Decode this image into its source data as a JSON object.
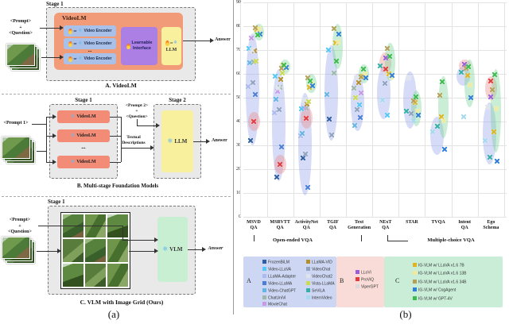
{
  "figure": {
    "caption_a": "(a)",
    "caption_b": "(b)"
  },
  "panel_a": {
    "stage1": "Stage 1",
    "title": "VideoLM",
    "encoder_label": "Video Encoder",
    "dots": "...",
    "or": "or",
    "interface_line1": "Learnable",
    "interface_line2": "Interface",
    "llm": "LLM",
    "prompt": [
      "<Prompt>",
      "+",
      "<Question>"
    ],
    "answer": "Answer",
    "caption": "A. VideoLM"
  },
  "panel_b": {
    "stage1": "Stage 1",
    "stage2": "Stage 2",
    "prompt1": "<Prompt 1>",
    "videolm": "VideoLM",
    "dots": "...",
    "textual": [
      "Textual",
      "Descriptions"
    ],
    "prompt2": [
      "<Prompt 2>",
      "+",
      "<Question>"
    ],
    "llm": "LLM",
    "answer": "Answer",
    "caption": "B. Multi-stage Foundation Models"
  },
  "panel_c": {
    "stage1": "Stage 1",
    "prompt": [
      "<Prompt>",
      "+",
      "<Question>"
    ],
    "vlm": "VLM",
    "answer": "Answer",
    "caption": "C. VLM with Image Grid (Ours)"
  },
  "chart_data": {
    "type": "scatter",
    "ylim": [
      0,
      90
    ],
    "yticks": [
      0,
      10,
      20,
      30,
      40,
      50,
      60,
      70,
      80,
      90
    ],
    "grid": true,
    "legend_position": "bottom",
    "categories": [
      [
        "MSVD",
        "QA"
      ],
      [
        "MSRVTT",
        "QA"
      ],
      [
        "ActivityNet",
        "QA"
      ],
      [
        "TGIF",
        "QA"
      ],
      [
        "Text",
        "Generation"
      ],
      [
        "NExT",
        "QA"
      ],
      [
        "STAR"
      ],
      [
        "TVQA"
      ],
      [
        "Intent",
        "QA"
      ],
      [
        "Ego",
        "Schema"
      ]
    ],
    "benchmark_groups": [
      {
        "label": "Open-ended VQA",
        "from": 0,
        "to": 3
      },
      {
        "label": "Multiple-choice VQA",
        "from": 5,
        "to": 9
      }
    ],
    "points": [
      [
        [
          "FrozenBiLM",
          32.2
        ],
        [
          "VideoChat",
          56.3
        ],
        [
          "LLaMA-Adapter",
          54.9
        ],
        [
          "Video-LLaMA",
          51.6
        ],
        [
          "Video-ChatGPT",
          64.9
        ],
        [
          "ChatUniVi",
          65.0
        ],
        [
          "MovieChat",
          75.2
        ],
        [
          "LLaMA-VID",
          69.7
        ],
        [
          "Video-LLaVA",
          70.7
        ],
        [
          "VideoChat2",
          70.0
        ],
        [
          "Vista-LLaMA",
          65.3
        ],
        [
          "ProViQ",
          40.0
        ],
        [
          "IG-VLM w/ LLaVA v1.6 7B",
          78.8
        ],
        [
          "IG-VLM w/ LLaVA v1.6 13B",
          79.2
        ],
        [
          "IG-VLM w/ LLaVA v1.6 34B",
          79.6
        ],
        [
          "IG-VLM w/ CogAgent",
          76.7
        ],
        [
          "IG-VLM w/ GPT-4V",
          76.3
        ]
      ],
      [
        [
          "FrozenBiLM",
          16.8
        ],
        [
          "VideoChat",
          45.0
        ],
        [
          "LLaMA-Adapter",
          43.8
        ],
        [
          "Video-LLaMA",
          29.6
        ],
        [
          "Video-ChatGPT",
          49.3
        ],
        [
          "ChatUniVi",
          54.6
        ],
        [
          "MovieChat",
          52.7
        ],
        [
          "LLaMA-VID",
          57.7
        ],
        [
          "Video-LLaVA",
          59.2
        ],
        [
          "VideoChat2",
          54.1
        ],
        [
          "Vista-LLaMA",
          60.5
        ],
        [
          "ProViQ",
          22.0
        ],
        [
          "IG-VLM w/ LLaVA v1.6 7B",
          63.7
        ],
        [
          "IG-VLM w/ LLaVA v1.6 13B",
          62.7
        ],
        [
          "IG-VLM w/ LLaVA v1.6 34B",
          62.4
        ],
        [
          "IG-VLM w/ CogAgent",
          62.7
        ],
        [
          "IG-VLM w/ GPT-4V",
          63.8
        ]
      ],
      [
        [
          "FrozenBiLM",
          24.7
        ],
        [
          "VideoChat",
          26.5
        ],
        [
          "LLaMA-Adapter",
          34.2
        ],
        [
          "Video-LLaMA",
          12.4
        ],
        [
          "Video-ChatGPT",
          35.2
        ],
        [
          "ChatUniVi",
          45.8
        ],
        [
          "MovieChat",
          45.7
        ],
        [
          "LLaMA-VID",
          47.4
        ],
        [
          "Video-LLaVA",
          45.3
        ],
        [
          "VideoChat2",
          49.1
        ],
        [
          "Vista-LLaMA",
          48.3
        ],
        [
          "ProViQ",
          41.5
        ],
        [
          "IG-VLM w/ LLaVA v1.6 7B",
          54.3
        ],
        [
          "IG-VLM w/ LLaVA v1.6 13B",
          56.1
        ],
        [
          "IG-VLM w/ LLaVA v1.6 34B",
          58.4
        ],
        [
          "IG-VLM w/ CogAgent",
          55.2
        ],
        [
          "IG-VLM w/ GPT-4V",
          57.0
        ]
      ],
      [
        [
          "FrozenBiLM",
          41.0
        ],
        [
          "VideoChat",
          34.4
        ],
        [
          "Video-ChatGPT",
          51.4
        ],
        [
          "ChatUniVi",
          60.3
        ],
        [
          "Video-LLaVA",
          70.0
        ],
        [
          "IG-VLM w/ LLaVA v1.6 7B",
          73.0
        ],
        [
          "IG-VLM w/ LLaVA v1.6 13B",
          73.5
        ],
        [
          "IG-VLM w/ LLaVA v1.6 34B",
          79.1
        ],
        [
          "IG-VLM w/ CogAgent",
          76.7
        ],
        [
          "IG-VLM w/ GPT-4V",
          65.3
        ]
      ],
      [
        [
          "VideoChat2",
          58.4
        ],
        [
          "LLaMA-VID",
          56.4
        ],
        [
          "ChatUniVi",
          54.0
        ],
        [
          "MovieChat",
          52.1
        ],
        [
          "Vista-LLaMA",
          50.1
        ],
        [
          "Video-LLaVA",
          47.1
        ],
        [
          "VideoChat",
          45.1
        ],
        [
          "Video-LLaMA",
          41.8
        ],
        [
          "Video-ChatGPT",
          38.4
        ],
        [
          "IG-VLM w/ LLaVA v1.6 7B",
          59.0
        ],
        [
          "IG-VLM w/ LLaVA v1.6 13B",
          60.0
        ],
        [
          "IG-VLM w/ LLaVA v1.6 34B",
          58.8
        ],
        [
          "IG-VLM w/ CogAgent",
          58.4
        ],
        [
          "IG-VLM w/ GPT-4V",
          62.2
        ]
      ],
      [
        [
          "InternVideo",
          49.1
        ],
        [
          "VideoChat",
          56.0
        ],
        [
          "ViperGPT",
          60.0
        ],
        [
          "SeViLA",
          63.6
        ],
        [
          "LLoVi",
          66.8
        ],
        [
          "ProViQ",
          62.1
        ],
        [
          "Video-LLaVA",
          42.8
        ],
        [
          "IG-VLM w/ LLaVA v1.6 7B",
          60.2
        ],
        [
          "IG-VLM w/ LLaVA v1.6 13B",
          58.8
        ],
        [
          "IG-VLM w/ LLaVA v1.6 34B",
          70.9
        ],
        [
          "IG-VLM w/ CogAgent",
          59.4
        ],
        [
          "IG-VLM w/ GPT-4V",
          67.4
        ]
      ],
      [
        [
          "VideoChat2",
          58.4
        ],
        [
          "VideoChat",
          43.4
        ],
        [
          "SeViLA",
          44.6
        ],
        [
          "InternVideo",
          40.4
        ],
        [
          "IG-VLM w/ LLaVA v1.6 7B",
          48.0
        ],
        [
          "IG-VLM w/ LLaVA v1.6 13B",
          44.4
        ],
        [
          "IG-VLM w/ LLaVA v1.6 34B",
          48.8
        ],
        [
          "IG-VLM w/ CogAgent",
          42.8
        ],
        [
          "IG-VLM w/ GPT-4V",
          50.4
        ]
      ],
      [
        [
          "VideoChat2",
          38.8
        ],
        [
          "SeViLA",
          38.2
        ],
        [
          "InternVideo",
          35.9
        ],
        [
          "IG-VLM w/ LLaVA v1.6 7B",
          42.0
        ],
        [
          "IG-VLM w/ LLaVA v1.6 13B",
          40.4
        ],
        [
          "IG-VLM w/ LLaVA v1.6 34B",
          51.2
        ],
        [
          "IG-VLM w/ CogAgent",
          28.4
        ],
        [
          "IG-VLM w/ GPT-4V",
          56.8
        ]
      ],
      [
        [
          "LLoVi",
          64.0
        ],
        [
          "SeViLA",
          60.9
        ],
        [
          "InternVideo",
          42.1
        ],
        [
          "IG-VLM w/ LLaVA v1.6 7B",
          59.4
        ],
        [
          "IG-VLM w/ LLaVA v1.6 13B",
          55.4
        ],
        [
          "IG-VLM w/ LLaVA v1.6 34B",
          62.6
        ],
        [
          "IG-VLM w/ CogAgent",
          50.1
        ],
        [
          "IG-VLM w/ GPT-4V",
          63.2
        ]
      ],
      [
        [
          "ProViQ",
          57.1
        ],
        [
          "LLoVi",
          50.3
        ],
        [
          "VideoChat2",
          46.1
        ],
        [
          "SeViLA",
          25.0
        ],
        [
          "InternVideo",
          32.1
        ],
        [
          "IG-VLM w/ LLaVA v1.6 7B",
          35.8
        ],
        [
          "IG-VLM w/ LLaVA v1.6 13B",
          45.4
        ],
        [
          "IG-VLM w/ LLaVA v1.6 34B",
          53.6
        ],
        [
          "IG-VLM w/ CogAgent",
          23.4
        ],
        [
          "IG-VLM w/ GPT-4V",
          59.8
        ]
      ]
    ],
    "ellipses": [
      [
        0,
        "A",
        30,
        77
      ],
      [
        0,
        "B",
        36,
        44
      ],
      [
        0,
        "C",
        74,
        81
      ],
      [
        1,
        "A",
        15,
        62
      ],
      [
        1,
        "B",
        18,
        26
      ],
      [
        1,
        "C",
        60,
        66
      ],
      [
        2,
        "A",
        9,
        52
      ],
      [
        2,
        "B",
        37,
        46
      ],
      [
        2,
        "C",
        52,
        60
      ],
      [
        3,
        "A",
        32,
        72
      ],
      [
        3,
        "C",
        62,
        81
      ],
      [
        4,
        "A",
        36,
        60
      ],
      [
        4,
        "C",
        56,
        64
      ],
      [
        5,
        "A",
        41,
        63
      ],
      [
        5,
        "B",
        60,
        69
      ],
      [
        5,
        "C",
        57,
        73
      ],
      [
        6,
        "A",
        37,
        61
      ],
      [
        6,
        "C",
        38,
        53
      ],
      [
        7,
        "A",
        26,
        42
      ],
      [
        7,
        "C",
        33,
        59
      ],
      [
        8,
        "A",
        55,
        63
      ],
      [
        8,
        "B",
        61,
        66
      ],
      [
        8,
        "C",
        46,
        66
      ],
      [
        9,
        "A",
        22,
        48
      ],
      [
        9,
        "B",
        49,
        59
      ],
      [
        9,
        "C",
        27,
        62
      ]
    ]
  },
  "legend": {
    "groups": [
      {
        "letter": "A",
        "bg": "#cdd7f3",
        "fill": "rgba(148,164,233,0.38)",
        "columns": [
          [
            {
              "label": "FrozenBiLM",
              "color": "#2e5fa3"
            },
            {
              "label": "Video-LLaVA",
              "color": "#55c8f5"
            },
            {
              "label": "LLaMA-Adapter",
              "color": "#aab9ee"
            },
            {
              "label": "Video-LLaMA",
              "color": "#4a7fd4"
            },
            {
              "label": "Video-ChatGPT",
              "color": "#64b5e6"
            },
            {
              "label": "ChatUniVi",
              "color": "#9db8a8"
            },
            {
              "label": "MovieChat",
              "color": "#c79ae8"
            }
          ],
          [
            {
              "label": "LLaMA-VID",
              "color": "#b38f2d"
            },
            {
              "label": "VideoChat",
              "color": "#8fa3c0"
            },
            {
              "label": "VideoChat2",
              "color": "#dfe3ea"
            },
            {
              "label": "Vista-LLaMA",
              "color": "#cbdb52"
            },
            {
              "label": "SeViLA",
              "color": "#35b0a8"
            },
            {
              "label": "InternVideo",
              "color": "#a5d9ef"
            }
          ]
        ]
      },
      {
        "letter": "B",
        "bg": "#f9dbd7",
        "fill": "rgba(238,140,140,0.40)",
        "columns": [
          [
            {
              "label": "LLoVi",
              "color": "#9a5fd6"
            },
            {
              "label": "ProViQ",
              "color": "#e23b3b"
            },
            {
              "label": "ViperGPT",
              "color": "#d9d9d9"
            }
          ]
        ]
      },
      {
        "letter": "C",
        "bg": "#c9edd7",
        "fill": "rgba(120,210,150,0.40)",
        "columns": [
          [
            {
              "label": "IG-VLM w/ LLaVA v1.6 7B",
              "color": "#e0b420"
            },
            {
              "label": "IG-VLM w/ LLaVA v1.6 13B",
              "color": "#f0ea9a"
            },
            {
              "label": "IG-VLM w/ LLaVA v1.6 34B",
              "color": "#b5a058"
            },
            {
              "label": "IG-VLM w/ CogAgent",
              "color": "#2f7fd6"
            },
            {
              "label": "IG-VLM w/ GPT-4V",
              "color": "#3dbb4f"
            }
          ]
        ]
      }
    ]
  }
}
